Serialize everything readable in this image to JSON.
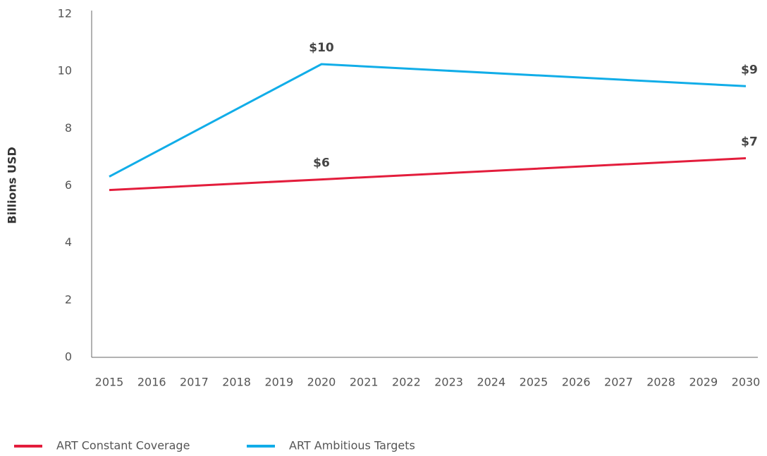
{
  "chart_data": {
    "type": "line",
    "y_label": "Billions USD",
    "xlim": [
      2015,
      2030
    ],
    "xticks": [
      2015,
      2016,
      2017,
      2018,
      2019,
      2020,
      2021,
      2022,
      2023,
      2024,
      2025,
      2026,
      2027,
      2028,
      2029,
      2030
    ],
    "ylim": [
      0,
      12
    ],
    "yticks": [
      0,
      2,
      4,
      6,
      8,
      10,
      12
    ],
    "grid": false,
    "legend": "bottom-left",
    "series": [
      {
        "name": "ART Constant Coverage",
        "color": "#e31d3c",
        "x": [
          2015,
          2020,
          2030
        ],
        "values": [
          5.85,
          6.22,
          6.96
        ],
        "value_labels": [
          null,
          "$6",
          "$7"
        ]
      },
      {
        "name": "ART Ambitious Targets",
        "color": "#11ade8",
        "x": [
          2015,
          2020,
          2030
        ],
        "values": [
          6.32,
          10.25,
          9.48
        ],
        "value_labels": [
          null,
          "$10",
          "$9"
        ]
      }
    ]
  }
}
